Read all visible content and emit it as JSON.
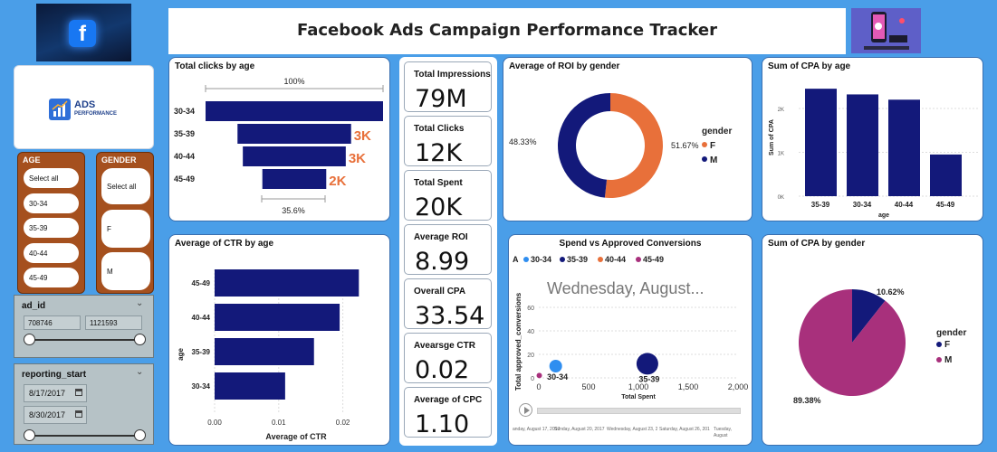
{
  "header": {
    "title": "Facebook Ads Campaign Performance Tracker",
    "logo_text": "ADS",
    "logo_subtext": "PERFORMANCE"
  },
  "slicers": {
    "age": {
      "label": "AGE",
      "options": [
        "Select all",
        "30-34",
        "35-39",
        "40-44",
        "45-49"
      ]
    },
    "gender": {
      "label": "GENDER",
      "options": [
        "Select all",
        "F",
        "M"
      ]
    },
    "ad_id": {
      "label": "ad_id",
      "min": "708746",
      "max": "1121593"
    },
    "reporting_start": {
      "label": "reporting_start",
      "from": "8/17/2017",
      "to": "8/30/2017"
    }
  },
  "kpis": [
    {
      "label": "Total Impressions",
      "value": "79M"
    },
    {
      "label": "Total Clicks",
      "value": "12K"
    },
    {
      "label": "Total Spent",
      "value": "20K"
    },
    {
      "label": "Average ROI",
      "value": "8.99"
    },
    {
      "label": "Overall CPA",
      "value": "33.54"
    },
    {
      "label": "Avearsge CTR",
      "value": "0.02"
    },
    {
      "label": "Average of CPC",
      "value": "1.10"
    }
  ],
  "colors": {
    "navy": "#13197a",
    "orange": "#e8703a",
    "magenta": "#a8307c",
    "light_blue": "#2f8ef0",
    "background": "#4a9ee8"
  },
  "funnel_extra": {
    "top_pct": "100%",
    "bottom_pct": "35.6%"
  },
  "chart_data": [
    {
      "id": "clicks_by_age",
      "type": "bar",
      "title": "Total clicks by age",
      "categories": [
        "30-34",
        "35-39",
        "40-44",
        "45-49"
      ],
      "values": [
        5000,
        3200,
        2900,
        1800
      ],
      "data_labels": [
        "",
        "3K",
        "3K",
        "2K"
      ]
    },
    {
      "id": "ctr_by_age",
      "type": "bar",
      "title": "Average of CTR by age",
      "categories": [
        "45-49",
        "40-44",
        "35-39",
        "30-34"
      ],
      "values": [
        0.0225,
        0.0195,
        0.0155,
        0.011
      ],
      "xlabel": "Average of CTR",
      "ylabel": "age",
      "xticks": [
        "0.00",
        "0.01",
        "0.02"
      ],
      "xlim": [
        0,
        0.025
      ]
    },
    {
      "id": "roi_by_gender",
      "type": "pie",
      "title": "Average of ROI by gender",
      "legend_title": "gender",
      "categories": [
        "F",
        "M"
      ],
      "values": [
        51.67,
        48.33
      ],
      "labels": [
        "51.67%",
        "48.33%"
      ]
    },
    {
      "id": "cpa_by_age",
      "type": "bar",
      "title": "Sum of CPA by age",
      "categories": [
        "35-39",
        "30-34",
        "40-44",
        "45-49"
      ],
      "values": [
        2450,
        2320,
        2200,
        950
      ],
      "xlabel": "age",
      "ylabel": "Sum of CPA",
      "yticks": [
        "0K",
        "1K",
        "2K"
      ],
      "ylim": [
        0,
        2700
      ]
    },
    {
      "id": "spend_vs_conversions",
      "type": "scatter",
      "title": "Spend vs Approved Conversions",
      "legend_label": "A",
      "legend": [
        "30-34",
        "35-39",
        "40-44",
        "45-49"
      ],
      "xlabel": "Total Spent",
      "ylabel": "Total approved_conversions",
      "xticks": [
        "0",
        "500",
        "1,000",
        "1,500",
        "2,000"
      ],
      "yticks": [
        "0",
        "20",
        "40",
        "60"
      ],
      "xlim": [
        0,
        2000
      ],
      "ylim": [
        0,
        60
      ],
      "points": [
        {
          "series": "30-34",
          "x": 170,
          "y": 10,
          "label": "30-34"
        },
        {
          "series": "35-39",
          "x": 1090,
          "y": 12,
          "label": "35-39"
        },
        {
          "series": "45-49",
          "x": 5,
          "y": 2,
          "label": ""
        }
      ],
      "play_axis_value": "Wednesday, August...",
      "timeline": [
        "anday, August 17, 2017",
        "Sunday, August 20, 2017",
        "Wednesday, August 23, 2017",
        "Saturday, August 26, 2017",
        "Tuesday, August"
      ]
    },
    {
      "id": "cpa_by_gender",
      "type": "pie",
      "title": "Sum of CPA by gender",
      "legend_title": "gender",
      "categories": [
        "F",
        "M"
      ],
      "values": [
        10.62,
        89.38
      ],
      "labels": [
        "10.62%",
        "89.38%"
      ]
    }
  ]
}
